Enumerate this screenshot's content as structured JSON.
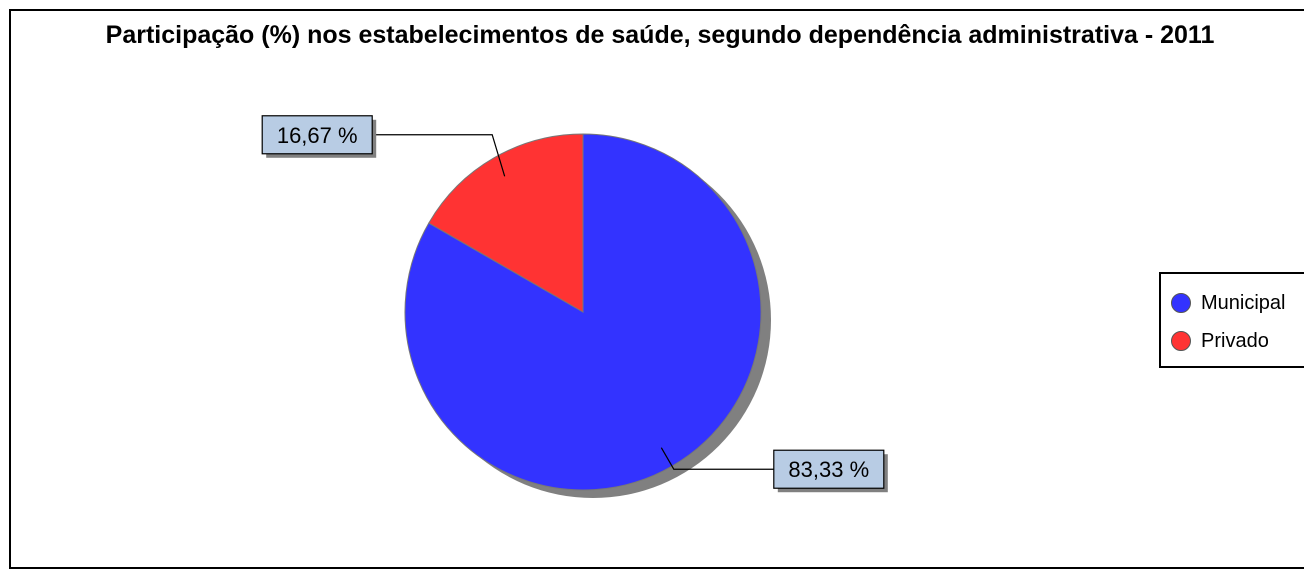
{
  "chart_data": {
    "type": "pie",
    "title": "Participação (%) nos estabelecimentos de saúde, segundo dependência administrativa - 2011",
    "categories": [
      "Municipal",
      "Privado"
    ],
    "values": [
      83.33,
      16.67
    ],
    "data_labels": [
      "83,33 %",
      "16,67 %"
    ],
    "colors": [
      "#3333ff",
      "#ff3333"
    ],
    "start_angle_deg": 0,
    "direction": "clockwise",
    "legend_position": "right"
  },
  "legend": {
    "items": [
      {
        "label": "Municipal",
        "color": "#3333ff"
      },
      {
        "label": "Privado",
        "color": "#ff3333"
      }
    ]
  },
  "label_box_color": "#b8cce4",
  "shadow_color": "#808080"
}
